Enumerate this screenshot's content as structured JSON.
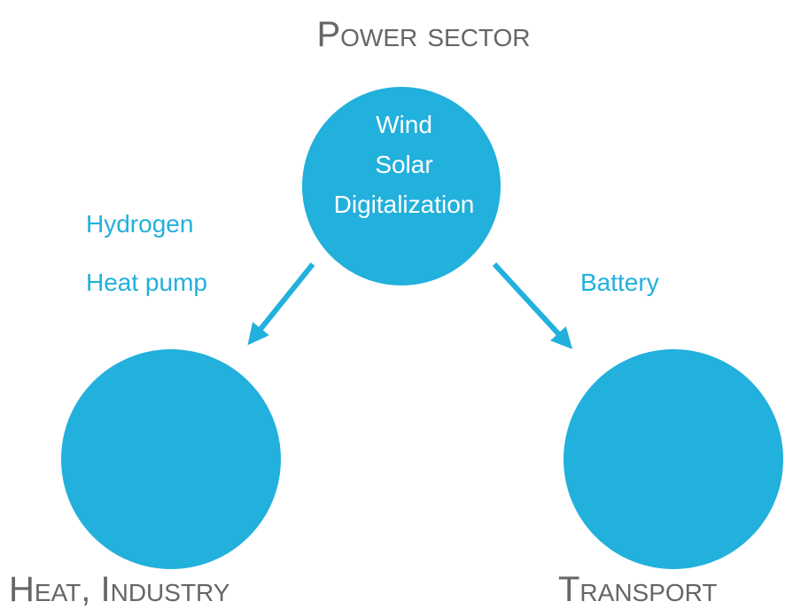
{
  "nodes": [
    {
      "label": "Power sector",
      "items": [
        "Wind",
        "Solar",
        "Digitalization"
      ]
    },
    {
      "label": "Heat, Industry"
    },
    {
      "label": "Transport"
    }
  ],
  "edges": [
    {
      "labels": [
        "Hydrogen",
        "Heat pump"
      ]
    },
    {
      "labels": [
        "Battery"
      ]
    }
  ]
}
